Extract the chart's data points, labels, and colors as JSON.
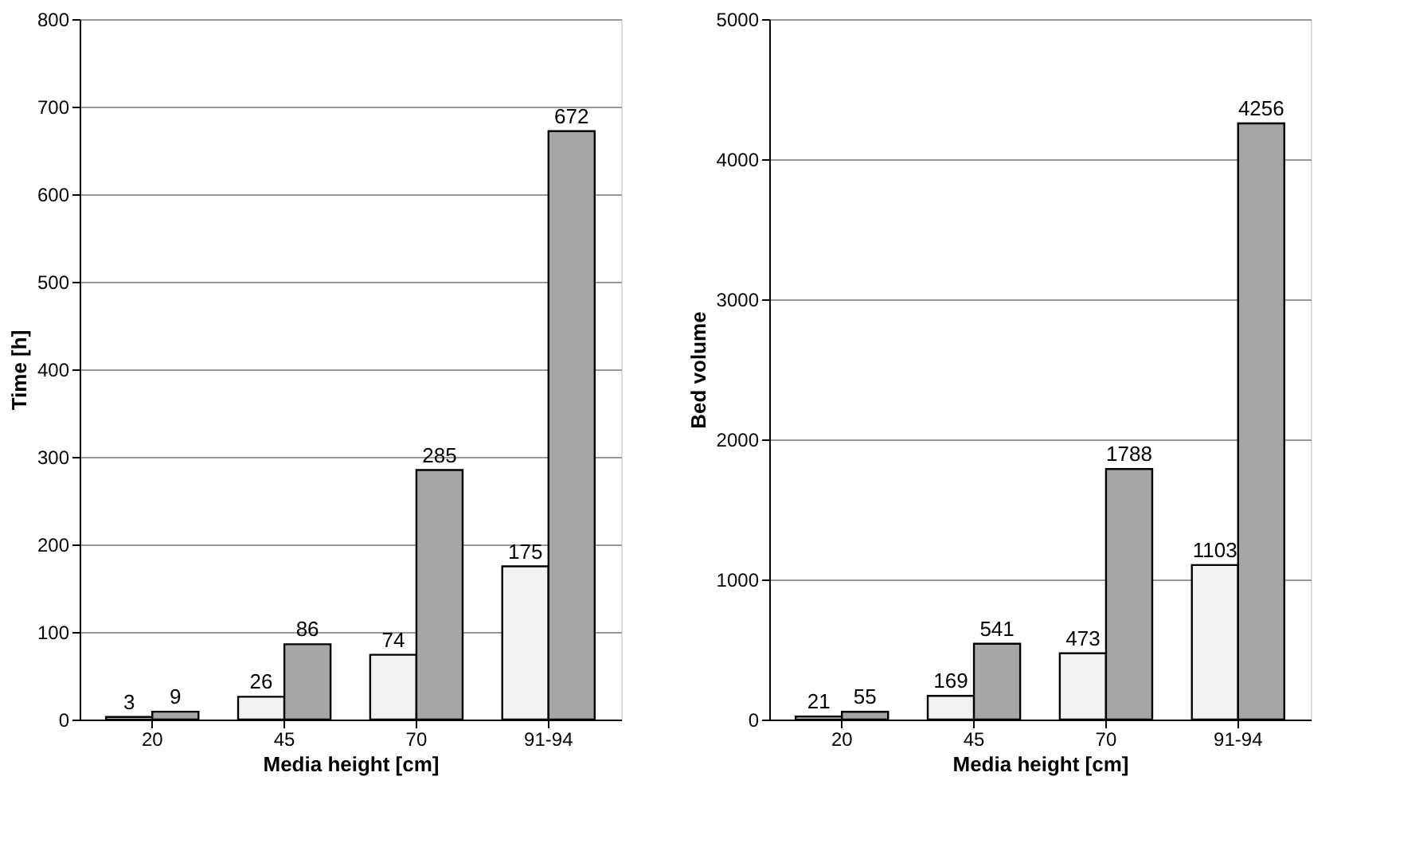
{
  "chart_data": [
    {
      "type": "bar",
      "xlabel": "Media height [cm]",
      "ylabel": "Time [h]",
      "categories": [
        "20",
        "45",
        "70",
        "91-94"
      ],
      "series": [
        {
          "color": "#f2f2f2",
          "values": [
            3,
            26,
            74,
            175
          ]
        },
        {
          "color": "#a6a6a6",
          "values": [
            9,
            86,
            285,
            672
          ]
        }
      ],
      "ylim": [
        0,
        800
      ],
      "yticks": [
        0,
        100,
        200,
        300,
        400,
        500,
        600,
        700,
        800
      ],
      "grid": "y",
      "data_labels": true
    },
    {
      "type": "bar",
      "xlabel": "Media height [cm]",
      "ylabel": "Bed volume",
      "categories": [
        "20",
        "45",
        "70",
        "91-94"
      ],
      "series": [
        {
          "color": "#f2f2f2",
          "values": [
            21,
            169,
            473,
            1103
          ]
        },
        {
          "color": "#a6a6a6",
          "values": [
            55,
            541,
            1788,
            4256
          ]
        }
      ],
      "ylim": [
        0,
        5000
      ],
      "yticks": [
        0,
        1000,
        2000,
        3000,
        4000,
        5000
      ],
      "grid": "y",
      "data_labels": true
    }
  ]
}
